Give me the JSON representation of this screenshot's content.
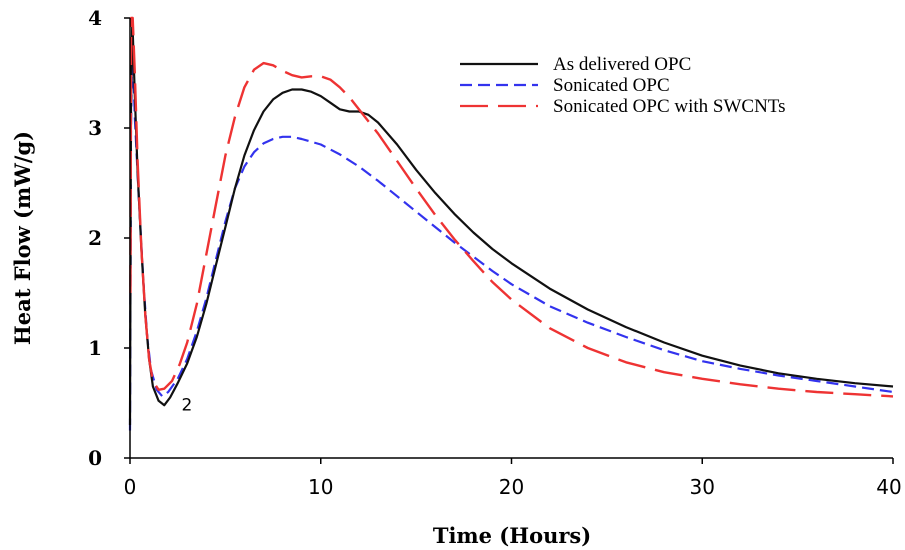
{
  "chart_data": {
    "type": "line",
    "title": "",
    "xlabel": "Time (Hours)",
    "ylabel": "Heat Flow (mW/g)",
    "xlim": [
      0,
      40
    ],
    "ylim": [
      0,
      4
    ],
    "xticks": [
      0,
      10,
      20,
      30,
      40
    ],
    "yticks": [
      0,
      1,
      2,
      3,
      4
    ],
    "grid": false,
    "legend_position": "top-right",
    "annotations": [
      {
        "text": "2",
        "x": 2.7,
        "y": 0.43
      }
    ],
    "series": [
      {
        "name": "As delivered OPC",
        "color": "#111111",
        "dash": "solid",
        "points": [
          [
            0,
            0.3
          ],
          [
            0.05,
            3.2
          ],
          [
            0.12,
            4.0
          ],
          [
            0.25,
            3.3
          ],
          [
            0.4,
            2.6
          ],
          [
            0.6,
            1.9
          ],
          [
            0.8,
            1.3
          ],
          [
            1.0,
            0.9
          ],
          [
            1.2,
            0.65
          ],
          [
            1.5,
            0.52
          ],
          [
            1.8,
            0.48
          ],
          [
            2.1,
            0.55
          ],
          [
            2.5,
            0.68
          ],
          [
            3.0,
            0.86
          ],
          [
            3.5,
            1.1
          ],
          [
            4,
            1.4
          ],
          [
            4.5,
            1.75
          ],
          [
            5,
            2.1
          ],
          [
            5.5,
            2.45
          ],
          [
            6,
            2.75
          ],
          [
            6.5,
            2.98
          ],
          [
            7,
            3.15
          ],
          [
            7.5,
            3.26
          ],
          [
            8,
            3.32
          ],
          [
            8.5,
            3.35
          ],
          [
            9,
            3.35
          ],
          [
            9.5,
            3.33
          ],
          [
            10,
            3.29
          ],
          [
            10.5,
            3.23
          ],
          [
            11,
            3.17
          ],
          [
            11.5,
            3.15
          ],
          [
            12,
            3.15
          ],
          [
            12.5,
            3.12
          ],
          [
            13,
            3.05
          ],
          [
            14,
            2.85
          ],
          [
            15,
            2.62
          ],
          [
            16,
            2.41
          ],
          [
            17,
            2.22
          ],
          [
            18,
            2.05
          ],
          [
            19,
            1.9
          ],
          [
            20,
            1.77
          ],
          [
            22,
            1.54
          ],
          [
            24,
            1.35
          ],
          [
            26,
            1.19
          ],
          [
            28,
            1.05
          ],
          [
            30,
            0.93
          ],
          [
            32,
            0.84
          ],
          [
            34,
            0.77
          ],
          [
            36,
            0.72
          ],
          [
            38,
            0.68
          ],
          [
            40,
            0.65
          ]
        ]
      },
      {
        "name": "Sonicated OPC",
        "color": "#3333ee",
        "dash": "short-dash",
        "points": [
          [
            0,
            0.25
          ],
          [
            0.05,
            3.0
          ],
          [
            0.12,
            3.8
          ],
          [
            0.25,
            3.1
          ],
          [
            0.45,
            2.4
          ],
          [
            0.7,
            1.6
          ],
          [
            0.9,
            1.1
          ],
          [
            1.1,
            0.8
          ],
          [
            1.4,
            0.62
          ],
          [
            1.7,
            0.56
          ],
          [
            2.0,
            0.6
          ],
          [
            2.5,
            0.72
          ],
          [
            3.0,
            0.9
          ],
          [
            3.5,
            1.15
          ],
          [
            4,
            1.45
          ],
          [
            4.5,
            1.8
          ],
          [
            5,
            2.15
          ],
          [
            5.5,
            2.45
          ],
          [
            6,
            2.65
          ],
          [
            6.5,
            2.78
          ],
          [
            7,
            2.86
          ],
          [
            7.5,
            2.9
          ],
          [
            8,
            2.92
          ],
          [
            8.5,
            2.92
          ],
          [
            9,
            2.9
          ],
          [
            10,
            2.85
          ],
          [
            11,
            2.76
          ],
          [
            12,
            2.65
          ],
          [
            13,
            2.52
          ],
          [
            14,
            2.38
          ],
          [
            15,
            2.24
          ],
          [
            16,
            2.1
          ],
          [
            17,
            1.96
          ],
          [
            18,
            1.83
          ],
          [
            19,
            1.7
          ],
          [
            20,
            1.58
          ],
          [
            22,
            1.38
          ],
          [
            24,
            1.23
          ],
          [
            26,
            1.1
          ],
          [
            28,
            0.98
          ],
          [
            30,
            0.88
          ],
          [
            32,
            0.81
          ],
          [
            34,
            0.75
          ],
          [
            36,
            0.7
          ],
          [
            38,
            0.65
          ],
          [
            40,
            0.6
          ]
        ]
      },
      {
        "name": "Sonicated OPC with SWCNTs",
        "color": "#ee3333",
        "dash": "long-dash",
        "points": [
          [
            0.02,
            1.5
          ],
          [
            0.06,
            4.0
          ],
          [
            0.14,
            4.0
          ],
          [
            0.25,
            3.5
          ],
          [
            0.4,
            2.7
          ],
          [
            0.6,
            1.9
          ],
          [
            0.8,
            1.3
          ],
          [
            1.0,
            0.9
          ],
          [
            1.2,
            0.7
          ],
          [
            1.5,
            0.62
          ],
          [
            1.8,
            0.63
          ],
          [
            2.2,
            0.7
          ],
          [
            2.6,
            0.85
          ],
          [
            3.0,
            1.05
          ],
          [
            3.5,
            1.4
          ],
          [
            4,
            1.85
          ],
          [
            4.5,
            2.3
          ],
          [
            5,
            2.75
          ],
          [
            5.5,
            3.1
          ],
          [
            6,
            3.37
          ],
          [
            6.5,
            3.53
          ],
          [
            7,
            3.59
          ],
          [
            7.5,
            3.57
          ],
          [
            8,
            3.52
          ],
          [
            8.5,
            3.48
          ],
          [
            9,
            3.46
          ],
          [
            9.5,
            3.47
          ],
          [
            10,
            3.47
          ],
          [
            10.5,
            3.44
          ],
          [
            11,
            3.37
          ],
          [
            11.5,
            3.28
          ],
          [
            12,
            3.17
          ],
          [
            13,
            2.95
          ],
          [
            14,
            2.7
          ],
          [
            15,
            2.45
          ],
          [
            16,
            2.21
          ],
          [
            17,
            1.99
          ],
          [
            18,
            1.79
          ],
          [
            19,
            1.6
          ],
          [
            20,
            1.44
          ],
          [
            22,
            1.18
          ],
          [
            24,
            1.0
          ],
          [
            26,
            0.87
          ],
          [
            28,
            0.78
          ],
          [
            30,
            0.72
          ],
          [
            32,
            0.67
          ],
          [
            34,
            0.63
          ],
          [
            36,
            0.6
          ],
          [
            38,
            0.58
          ],
          [
            40,
            0.56
          ]
        ]
      }
    ]
  }
}
